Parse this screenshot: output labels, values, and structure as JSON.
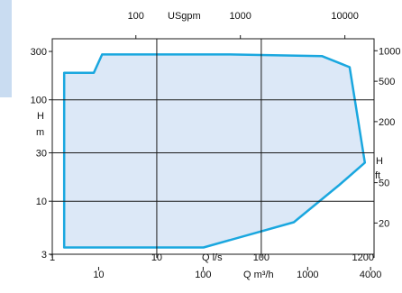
{
  "colors": {
    "envelope_fill": "#dce8f7",
    "envelope_stroke": "#1aa7df",
    "grid": "#1a1a1a",
    "side_strip": "#c9dcf1"
  },
  "chart_data": {
    "type": "area",
    "title": "",
    "scale": "log-log",
    "grid": true,
    "legend": "none",
    "x_range_ls": [
      1,
      1200
    ],
    "y_range_m": [
      3,
      400
    ],
    "axes": {
      "x_top": {
        "label": "USgpm",
        "ticks": [
          "100",
          "1000",
          "10000"
        ],
        "values": [
          100,
          1000,
          10000
        ]
      },
      "x_bottom1": {
        "label": "Q l/s",
        "ticks": [
          "1",
          "10",
          "100",
          "1200"
        ],
        "values": [
          1,
          10,
          100,
          1200
        ]
      },
      "x_bottom2": {
        "label": "Q m³/h",
        "ticks": [
          "10",
          "100",
          "1000",
          "4000"
        ],
        "values": [
          10,
          100,
          1000,
          4000
        ]
      },
      "y_left": {
        "label_lines": [
          "H",
          "m"
        ],
        "ticks": [
          "300",
          "100",
          "30",
          "10",
          "3"
        ],
        "values": [
          300,
          100,
          30,
          10,
          3
        ]
      },
      "y_right": {
        "label_lines": [
          "H",
          "ft"
        ],
        "ticks": [
          "1000",
          "500",
          "200",
          "50",
          "20"
        ],
        "values": [
          1000,
          500,
          200,
          50,
          20
        ]
      }
    },
    "series": [
      {
        "x_ls": [
          1.3,
          1.3,
          2.5,
          3.0,
          50,
          380,
          700,
          980,
          560,
          205,
          28,
          1.3
        ],
        "y_m": [
          3.5,
          185,
          185,
          280,
          280,
          270,
          210,
          24,
          14.5,
          6.2,
          3.5,
          3.5
        ]
      }
    ]
  }
}
